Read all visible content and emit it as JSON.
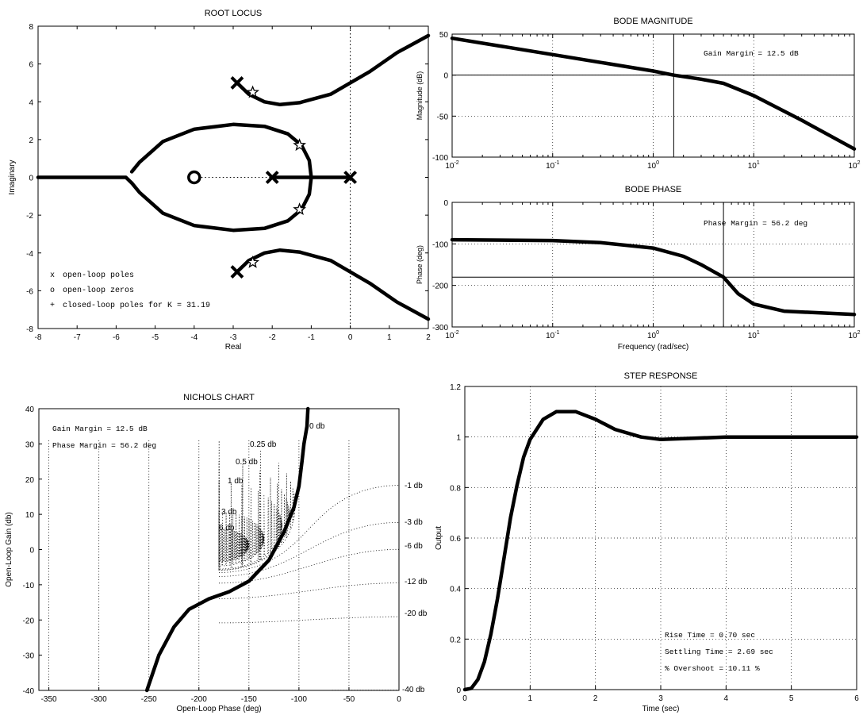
{
  "chart_data": [
    {
      "id": "root_locus",
      "type": "line",
      "title": "ROOT LOCUS",
      "xlabel": "Real",
      "ylabel": "Imaginary",
      "xlim": [
        -8,
        2
      ],
      "ylim": [
        -8,
        8
      ],
      "xticks": [
        "-8",
        "-7",
        "-6",
        "-5",
        "-4",
        "-3",
        "-2",
        "-1",
        "0",
        "1",
        "2"
      ],
      "yticks": [
        "8",
        "6",
        "4",
        "2",
        "0",
        "-2",
        "-4",
        "-6",
        "-8"
      ],
      "series": [
        {
          "x": [
            -2.9,
            -2.6,
            -2.2,
            -1.8,
            -1.3,
            -0.5,
            0.5,
            1.2,
            2.0
          ],
          "y": [
            5.0,
            4.4,
            4.0,
            3.85,
            3.95,
            4.4,
            5.6,
            6.6,
            7.5
          ]
        },
        {
          "x": [
            -2.9,
            -2.6,
            -2.2,
            -1.8,
            -1.3,
            -0.5,
            0.5,
            1.2,
            2.0
          ],
          "y": [
            -5.0,
            -4.4,
            -4.0,
            -3.85,
            -3.95,
            -4.4,
            -5.6,
            -6.6,
            -7.5
          ]
        },
        {
          "x": [
            -1.0,
            -1.05,
            -1.25,
            -1.6,
            -2.2,
            -3.0,
            -4.0,
            -4.8,
            -5.4,
            -5.6
          ],
          "y": [
            0.0,
            0.9,
            1.7,
            2.3,
            2.7,
            2.8,
            2.55,
            1.9,
            0.8,
            0.3
          ]
        },
        {
          "x": [
            -1.0,
            -1.05,
            -1.25,
            -1.6,
            -2.2,
            -3.0,
            -4.0,
            -4.8,
            -5.4,
            -5.6
          ],
          "y": [
            0.0,
            -0.9,
            -1.7,
            -2.3,
            -2.7,
            -2.8,
            -2.55,
            -1.9,
            -0.8,
            -0.3
          ]
        },
        {
          "x": [
            -8.0,
            -5.75,
            -5.6
          ],
          "y": [
            0.0,
            0.0,
            -0.3
          ]
        },
        {
          "x": [
            -2.0,
            0.0
          ],
          "y": [
            0.0,
            0.0
          ]
        }
      ],
      "open_loop_poles": [
        [
          -2.9,
          5.0
        ],
        [
          -2.9,
          -5.0
        ],
        [
          -2.0,
          0.0
        ],
        [
          0.0,
          0.0
        ]
      ],
      "open_loop_zeros": [
        [
          -4.0,
          0.0
        ]
      ],
      "closed_loop_poles": [
        [
          -2.5,
          4.5
        ],
        [
          -2.5,
          -4.5
        ],
        [
          -1.3,
          1.7
        ],
        [
          -1.3,
          -1.7
        ]
      ],
      "legend": [
        {
          "symbol": "x",
          "label": "open-loop poles"
        },
        {
          "symbol": "o",
          "label": "open-loop zeros"
        },
        {
          "symbol": "+",
          "label": "closed-loop poles for K = 31.19"
        }
      ]
    },
    {
      "id": "bode_magnitude",
      "type": "line",
      "title": "BODE MAGNITUDE",
      "xlabel": "",
      "ylabel": "Magnitude (dB)",
      "xscale": "log",
      "xlim": [
        0.01,
        100
      ],
      "ylim": [
        -100,
        50
      ],
      "yticks": [
        "50",
        "0",
        "-50",
        "-100"
      ],
      "series": [
        {
          "x": [
            0.01,
            0.1,
            1,
            1.6,
            3,
            5,
            10,
            30,
            100
          ],
          "y": [
            45,
            25,
            5,
            0,
            -5,
            -10,
            -25,
            -55,
            -90
          ]
        }
      ],
      "gain_crossover": 1.6,
      "annotation": "Gain Margin = 12.5 dB"
    },
    {
      "id": "bode_phase",
      "type": "line",
      "title": "BODE PHASE",
      "xlabel": "Frequency (rad/sec)",
      "ylabel": "Phase (deg)",
      "xscale": "log",
      "xlim": [
        0.01,
        100
      ],
      "ylim": [
        -300,
        0
      ],
      "yticks": [
        "0",
        "-100",
        "-200",
        "-300"
      ],
      "series": [
        {
          "x": [
            0.01,
            0.1,
            0.3,
            1,
            2,
            3,
            5,
            7,
            10,
            20,
            100
          ],
          "y": [
            -90,
            -92,
            -97,
            -110,
            -130,
            -150,
            -180,
            -220,
            -245,
            -262,
            -270
          ]
        }
      ],
      "phase_crossover": 5.0,
      "annotation": "Phase Margin = 56.2 deg"
    },
    {
      "id": "nichols",
      "type": "line",
      "title": "NICHOLS CHART",
      "xlabel": "Open-Loop Phase (deg)",
      "ylabel": "Open-Loop Gain (db)",
      "xlim": [
        -360,
        0
      ],
      "ylim": [
        -40,
        40
      ],
      "xticks": [
        "-350",
        "-300",
        "-250",
        "-200",
        "-150",
        "-100",
        "-50",
        "0"
      ],
      "yticks": [
        "40",
        "30",
        "20",
        "10",
        "0",
        "-10",
        "-20",
        "-30",
        "-40"
      ],
      "series": [
        {
          "x": [
            -252,
            -240,
            -225,
            -210,
            -190,
            -170,
            -150,
            -130,
            -115,
            -105,
            -100,
            -97,
            -95,
            -92,
            -91
          ],
          "y": [
            -40,
            -30,
            -22,
            -17,
            -14,
            -12,
            -9,
            -3,
            5,
            12,
            18,
            25,
            30,
            35,
            40
          ]
        }
      ],
      "contour_labels": [
        "0 db",
        "0.25 db",
        "0.5 db",
        "1 db",
        "3 db",
        "6 db",
        "-1 db",
        "-3 db",
        "-6 db",
        "-12 db",
        "-20 db",
        "-40 db"
      ],
      "annotations": [
        "Gain Margin  = 12.5 dB",
        "Phase Margin = 56.2 deg"
      ]
    },
    {
      "id": "step_response",
      "type": "line",
      "title": "STEP RESPONSE",
      "xlabel": "Time (sec)",
      "ylabel": "Output",
      "xlim": [
        0,
        6
      ],
      "ylim": [
        0,
        1.2
      ],
      "xticks": [
        "0",
        "1",
        "2",
        "3",
        "4",
        "5",
        "6"
      ],
      "yticks": [
        "1.2",
        "1",
        "0.8",
        "0.6",
        "0.4",
        "0.2",
        "0"
      ],
      "series": [
        {
          "x": [
            0,
            0.1,
            0.2,
            0.3,
            0.4,
            0.5,
            0.6,
            0.7,
            0.8,
            0.9,
            1.0,
            1.2,
            1.4,
            1.7,
            2.0,
            2.3,
            2.7,
            3.0,
            3.5,
            4.0,
            5.0,
            6.0
          ],
          "y": [
            0,
            0.005,
            0.04,
            0.11,
            0.22,
            0.36,
            0.52,
            0.68,
            0.81,
            0.92,
            0.99,
            1.07,
            1.1,
            1.1,
            1.07,
            1.03,
            1.0,
            0.99,
            0.995,
            1.0,
            1.0,
            1.0
          ]
        }
      ],
      "annotations": [
        "Rise Time     =  0.70 sec",
        "Settling Time =  2.69 sec",
        "% Overshoot   = 10.11 %"
      ]
    }
  ]
}
